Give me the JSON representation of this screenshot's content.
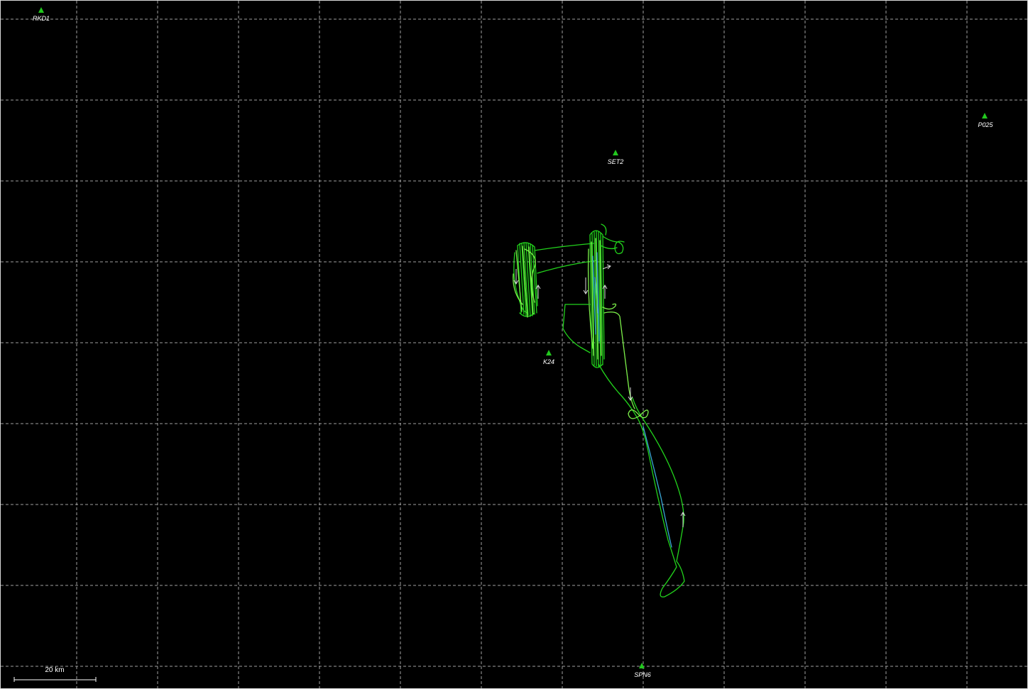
{
  "map": {
    "background": "#000000",
    "grid_color": "#bdbdbd",
    "track_colors": [
      "#22d41c",
      "#7cf04a",
      "#3aa8d8",
      "#c8f040"
    ]
  },
  "stations": [
    {
      "id": "rkd1",
      "label": "RKD1"
    },
    {
      "id": "set2",
      "label": "SET2"
    },
    {
      "id": "p025",
      "label": "P025"
    },
    {
      "id": "k24",
      "label": "K24"
    },
    {
      "id": "spn6",
      "label": "SPN6"
    }
  ],
  "scale_bar": {
    "label": "20 km"
  }
}
